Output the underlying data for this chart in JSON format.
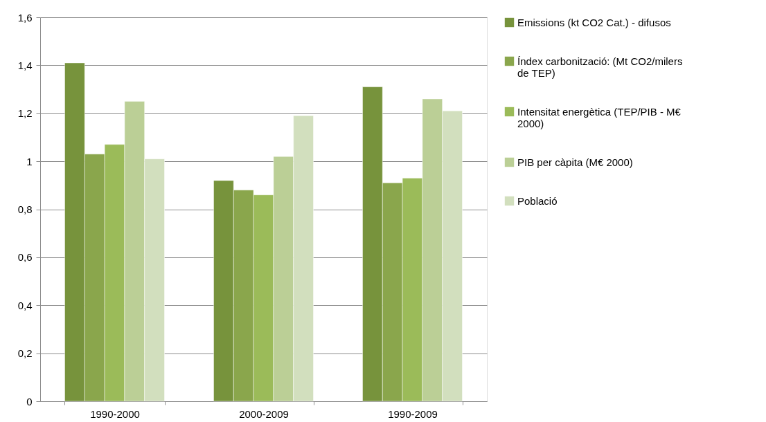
{
  "chart_data": {
    "type": "bar",
    "categories": [
      "1990-2000",
      "2000-2009",
      "1990-2009"
    ],
    "series": [
      {
        "name": "Emissions (kt CO2 Cat.) - difusos",
        "color": "#77933c",
        "values": [
          1.41,
          0.92,
          1.31
        ]
      },
      {
        "name": "Índex carbonització: (Mt CO2/milers de TEP)",
        "color": "#8aa64c",
        "values": [
          1.03,
          0.88,
          0.91
        ]
      },
      {
        "name": "Intensitat energètica (TEP/PIB - M€ 2000)",
        "color": "#9bbb59",
        "values": [
          1.07,
          0.86,
          0.93
        ]
      },
      {
        "name": "PIB per càpita (M€ 2000)",
        "color": "#bbcf96",
        "values": [
          1.25,
          1.02,
          1.26
        ]
      },
      {
        "name": "Població",
        "color": "#d2dfbe",
        "values": [
          1.01,
          1.19,
          1.21
        ]
      }
    ],
    "ylim": [
      0,
      1.6
    ],
    "yticks": [
      0,
      {
        "value": 0.2,
        "label": "0,2"
      },
      {
        "value": 0.4,
        "label": "0,4"
      },
      {
        "value": 0.6,
        "label": "0,6"
      },
      {
        "value": 0.8,
        "label": "0,8"
      },
      1,
      {
        "value": 1.2,
        "label": "1,2"
      },
      {
        "value": 1.4,
        "label": "1,4"
      },
      {
        "value": 1.6,
        "label": "1,6"
      }
    ],
    "grid": "y",
    "legend": "right"
  }
}
